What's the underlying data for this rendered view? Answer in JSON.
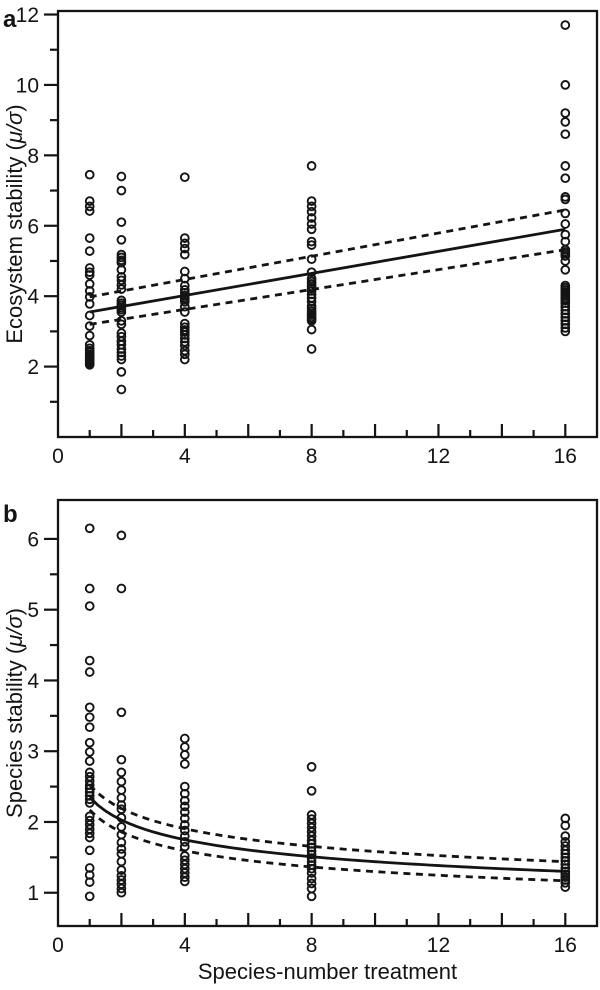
{
  "figure": {
    "xlabel": "Species-number treatment",
    "panel_a_label": "a",
    "panel_b_label": "b"
  },
  "colors": {
    "ink": "#141414",
    "background": "#ffffff"
  },
  "chart_data": [
    {
      "type": "scatter",
      "panel_label": "a",
      "ylabel": "Ecosystem stability (μ/σ)",
      "xlabel": "",
      "xlim": [
        0,
        17
      ],
      "ylim": [
        0,
        12.1
      ],
      "x_major_ticks": [
        0,
        4,
        8,
        12,
        16
      ],
      "x_mid_ticks": [
        2,
        6,
        10,
        14
      ],
      "x_minor_ticks": [
        1,
        3,
        5,
        7,
        9,
        11,
        13,
        15
      ],
      "y_major_ticks": [
        2,
        4,
        6,
        8,
        10,
        12
      ],
      "y_minor_ticks": [
        1,
        3,
        5,
        7,
        9,
        11
      ],
      "marker": "open-circle",
      "series": [
        {
          "x": 1,
          "values": [
            7.45,
            6.7,
            6.55,
            6.42,
            5.65,
            5.28,
            4.8,
            4.68,
            4.6,
            4.35,
            4.15,
            3.98,
            3.78,
            3.45,
            3.15,
            2.88,
            2.62,
            2.52,
            2.45,
            2.4,
            2.34,
            2.29,
            2.25,
            2.21,
            2.17,
            2.13,
            2.09,
            2.05
          ]
        },
        {
          "x": 2,
          "values": [
            7.4,
            7.0,
            6.1,
            5.6,
            5.18,
            5.1,
            5.02,
            4.95,
            4.75,
            4.55,
            4.45,
            4.32,
            4.2,
            3.88,
            3.8,
            3.74,
            3.68,
            3.62,
            3.55,
            3.3,
            3.2,
            2.95,
            2.85,
            2.72,
            2.62,
            2.5,
            2.4,
            2.3,
            2.2,
            1.85,
            1.35
          ]
        },
        {
          "x": 4,
          "values": [
            7.38,
            5.65,
            5.5,
            5.35,
            5.18,
            4.7,
            4.5,
            4.3,
            4.18,
            4.1,
            4.02,
            3.96,
            3.9,
            3.84,
            3.7,
            3.55,
            3.22,
            3.12,
            3.04,
            2.98,
            2.9,
            2.8,
            2.7,
            2.6,
            2.45,
            2.35,
            2.2
          ]
        },
        {
          "x": 8,
          "values": [
            7.7,
            6.7,
            6.55,
            6.4,
            6.22,
            6.05,
            5.9,
            5.55,
            5.45,
            5.05,
            4.68,
            4.5,
            4.42,
            4.35,
            4.28,
            4.22,
            4.15,
            4.05,
            3.95,
            3.85,
            3.72,
            3.65,
            3.58,
            3.52,
            3.46,
            3.4,
            3.35,
            3.3,
            3.05,
            2.5
          ]
        },
        {
          "x": 16,
          "values": [
            11.7,
            10.0,
            9.2,
            8.95,
            8.6,
            7.7,
            7.35,
            6.82,
            6.75,
            6.35,
            6.05,
            5.75,
            5.55,
            5.32,
            5.26,
            5.2,
            5.14,
            5.0,
            4.75,
            4.3,
            4.24,
            4.18,
            4.12,
            4.06,
            4.0,
            3.94,
            3.88,
            3.8,
            3.7,
            3.6,
            3.5,
            3.4,
            3.3,
            3.2,
            3.1,
            3.0
          ]
        }
      ],
      "fit": {
        "type": "linear",
        "x_range": [
          1,
          16
        ],
        "solid": {
          "y_start": 3.55,
          "y_end": 5.9
        },
        "upper_dashed": {
          "y_start": 3.98,
          "y_end": 6.45
        },
        "lower_dashed": {
          "y_start": 3.2,
          "y_end": 5.32
        }
      }
    },
    {
      "type": "scatter",
      "panel_label": "b",
      "ylabel": "Species stability (μ/σ)",
      "xlabel": "Species-number treatment",
      "xlim": [
        0,
        17
      ],
      "ylim": [
        0.53,
        6.55
      ],
      "x_major_ticks": [
        0,
        4,
        8,
        12,
        16
      ],
      "x_mid_ticks": [
        2,
        6,
        10,
        14
      ],
      "x_minor_ticks": [
        1,
        3,
        5,
        7,
        9,
        11,
        13,
        15
      ],
      "y_major_ticks": [
        1,
        2,
        3,
        4,
        5,
        6
      ],
      "y_minor_ticks": [
        1.5,
        2.5,
        3.5,
        4.5,
        5.5
      ],
      "marker": "open-circle",
      "series": [
        {
          "x": 1,
          "values": [
            6.15,
            5.3,
            5.05,
            4.28,
            4.12,
            3.62,
            3.48,
            3.34,
            3.12,
            2.99,
            2.86,
            2.7,
            2.64,
            2.58,
            2.52,
            2.47,
            2.42,
            2.37,
            2.32,
            2.27,
            2.08,
            2.02,
            1.96,
            1.9,
            1.84,
            1.78,
            1.6,
            1.35,
            1.25,
            1.15,
            0.95
          ]
        },
        {
          "x": 2,
          "values": [
            6.05,
            5.3,
            3.55,
            2.88,
            2.7,
            2.57,
            2.45,
            2.34,
            2.24,
            2.18,
            2.06,
            1.93,
            1.82,
            1.71,
            1.62,
            1.55,
            1.44,
            1.32,
            1.24,
            1.18,
            1.12,
            1.06,
            1.0
          ]
        },
        {
          "x": 4,
          "values": [
            3.18,
            3.06,
            2.95,
            2.82,
            2.5,
            2.4,
            2.3,
            2.22,
            2.14,
            2.05,
            1.96,
            1.88,
            1.8,
            1.72,
            1.65,
            1.52,
            1.46,
            1.4,
            1.34,
            1.28,
            1.22,
            1.16
          ]
        },
        {
          "x": 8,
          "values": [
            2.78,
            2.44,
            2.1,
            2.04,
            1.98,
            1.92,
            1.86,
            1.8,
            1.74,
            1.69,
            1.64,
            1.59,
            1.54,
            1.49,
            1.44,
            1.39,
            1.34,
            1.28,
            1.2,
            1.13,
            1.06,
            0.95
          ]
        },
        {
          "x": 16,
          "values": [
            2.05,
            1.95,
            1.8,
            1.72,
            1.66,
            1.6,
            1.55,
            1.5,
            1.45,
            1.4,
            1.35,
            1.3,
            1.26,
            1.22,
            1.18,
            1.14,
            1.08
          ]
        }
      ],
      "fit": {
        "type": "power",
        "x_range": [
          1,
          16
        ],
        "solid": {
          "coef": 2.35,
          "exp": -0.213
        },
        "upper_dashed": {
          "coef": 2.52,
          "exp": -0.202
        },
        "lower_dashed": {
          "coef": 2.17,
          "exp": -0.223
        }
      }
    }
  ]
}
